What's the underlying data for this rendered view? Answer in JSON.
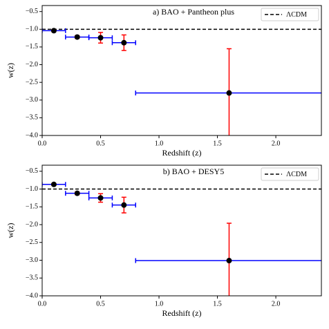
{
  "chart_data": [
    {
      "type": "errorbar",
      "title": "a) BAO + Pantheon plus",
      "x_label": "Redshift (z)",
      "y_label": "w(z)",
      "reference_line": {
        "name": "ΛCDM",
        "value": -1,
        "color": "#000000"
      },
      "legend": "upper right",
      "x_err_color": "#0000ff",
      "y_err_color": "#ff0000",
      "marker_color": "#000000",
      "points": [
        {
          "x": 0.1,
          "y": -1.04,
          "xerr": [
            0.1,
            0.1
          ],
          "yerr": [
            0.03,
            0.03
          ]
        },
        {
          "x": 0.3,
          "y": -1.22,
          "xerr": [
            0.1,
            0.1
          ],
          "yerr": [
            0.04,
            0.04
          ]
        },
        {
          "x": 0.5,
          "y": -1.24,
          "xerr": [
            0.1,
            0.1
          ],
          "yerr": [
            0.15,
            0.15
          ]
        },
        {
          "x": 0.7,
          "y": -1.38,
          "xerr": [
            0.1,
            0.1
          ],
          "yerr": [
            0.22,
            0.22
          ]
        },
        {
          "x": 1.6,
          "y": -2.8,
          "xerr": [
            0.8,
            0.8
          ],
          "yerr": [
            1.4,
            1.25
          ]
        }
      ],
      "xlim": [
        0,
        2.39
      ],
      "ylim": [
        -4,
        -0.33
      ],
      "xticks": [
        {
          "value": 0,
          "label": "0.0"
        },
        {
          "value": 0.5,
          "label": "0.5"
        },
        {
          "value": 1,
          "label": "1.0"
        },
        {
          "value": 1.5,
          "label": "1.5"
        },
        {
          "value": 2,
          "label": "2.0"
        }
      ],
      "yticks": [
        {
          "value": -0.5,
          "label": "−0.5"
        },
        {
          "value": -1,
          "label": "−1.0"
        },
        {
          "value": -1.5,
          "label": "−1.5"
        },
        {
          "value": -2,
          "label": "−2.0"
        },
        {
          "value": -2.5,
          "label": "−2.5"
        },
        {
          "value": -3,
          "label": "−3.0"
        },
        {
          "value": -3.5,
          "label": "−3.5"
        },
        {
          "value": -4,
          "label": "−4.0"
        }
      ]
    },
    {
      "type": "errorbar",
      "title": "b) BAO + DESY5",
      "x_label": "Redshift (z)",
      "y_label": "w(z)",
      "reference_line": {
        "name": "ΛCDM",
        "value": -1,
        "color": "#000000"
      },
      "legend": "upper right",
      "x_err_color": "#0000ff",
      "y_err_color": "#ff0000",
      "marker_color": "#000000",
      "points": [
        {
          "x": 0.1,
          "y": -0.87,
          "xerr": [
            0.1,
            0.1
          ],
          "yerr": [
            0.03,
            0.03
          ]
        },
        {
          "x": 0.3,
          "y": -1.12,
          "xerr": [
            0.1,
            0.1
          ],
          "yerr": [
            0.04,
            0.04
          ]
        },
        {
          "x": 0.5,
          "y": -1.25,
          "xerr": [
            0.1,
            0.1
          ],
          "yerr": [
            0.12,
            0.12
          ]
        },
        {
          "x": 0.7,
          "y": -1.45,
          "xerr": [
            0.1,
            0.1
          ],
          "yerr": [
            0.22,
            0.22
          ]
        },
        {
          "x": 1.6,
          "y": -3.01,
          "xerr": [
            0.8,
            0.8
          ],
          "yerr": [
            1.4,
            1.05
          ]
        }
      ],
      "xlim": [
        0,
        2.39
      ],
      "ylim": [
        -4,
        -0.33
      ],
      "xticks": [
        {
          "value": 0,
          "label": "0.0"
        },
        {
          "value": 0.5,
          "label": "0.5"
        },
        {
          "value": 1,
          "label": "1.0"
        },
        {
          "value": 1.5,
          "label": "1.5"
        },
        {
          "value": 2,
          "label": "2.0"
        }
      ],
      "yticks": [
        {
          "value": -0.5,
          "label": "−0.5"
        },
        {
          "value": -1,
          "label": "−1.0"
        },
        {
          "value": -1.5,
          "label": "−1.5"
        },
        {
          "value": -2,
          "label": "−2.0"
        },
        {
          "value": -2.5,
          "label": "−2.5"
        },
        {
          "value": -3,
          "label": "−3.0"
        },
        {
          "value": -3.5,
          "label": "−3.5"
        },
        {
          "value": -4,
          "label": "−4.0"
        }
      ]
    }
  ]
}
